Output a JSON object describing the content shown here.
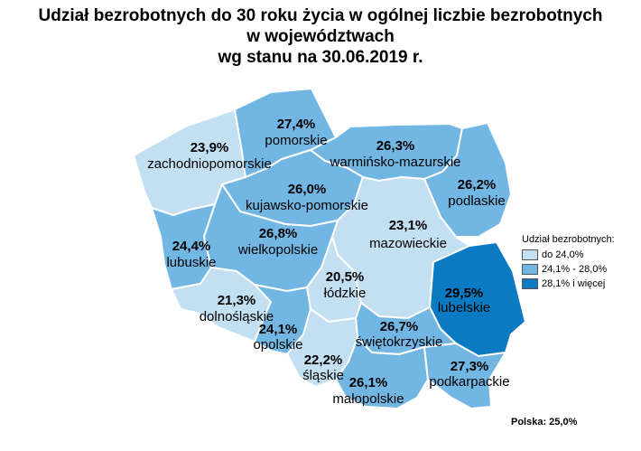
{
  "title": {
    "line1": "Udział bezrobotnych do 30 roku życia w ogólnej liczbie bezrobotnych",
    "line2": "w województwach",
    "line3": "wg stanu na 30.06.2019 r."
  },
  "colors": {
    "light": "#c3dff2",
    "medium": "#72b7e3",
    "dark": "#0a7bc2"
  },
  "regions": [
    {
      "id": "zachodniopomorskie",
      "name": "zachodniopomorskie",
      "value": "23,9%",
      "class": "light"
    },
    {
      "id": "pomorskie",
      "name": "pomorskie",
      "value": "27,4%",
      "class": "medium"
    },
    {
      "id": "warminsko-mazurskie",
      "name": "warmińsko-mazurskie",
      "value": "26,3%",
      "class": "medium"
    },
    {
      "id": "podlaskie",
      "name": "podlaskie",
      "value": "26,2%",
      "class": "medium"
    },
    {
      "id": "kujawsko-pomorskie",
      "name": "kujawsko-pomorskie",
      "value": "26,0%",
      "class": "medium"
    },
    {
      "id": "lubuskie",
      "name": "lubuskie",
      "value": "24,4%",
      "class": "medium"
    },
    {
      "id": "wielkopolskie",
      "name": "wielkopolskie",
      "value": "26,8%",
      "class": "medium"
    },
    {
      "id": "mazowieckie",
      "name": "mazowieckie",
      "value": "23,1%",
      "class": "light"
    },
    {
      "id": "lodzkie",
      "name": "łódzkie",
      "value": "20,5%",
      "class": "light"
    },
    {
      "id": "lubelskie",
      "name": "lubelskie",
      "value": "29,5%",
      "class": "dark"
    },
    {
      "id": "dolnoslaskie",
      "name": "dolnośląskie",
      "value": "21,3%",
      "class": "light"
    },
    {
      "id": "opolskie",
      "name": "opolskie",
      "value": "24,1%",
      "class": "medium"
    },
    {
      "id": "swietokrzyskie",
      "name": "świętokrzyskie",
      "value": "26,7%",
      "class": "medium"
    },
    {
      "id": "slaskie",
      "name": "śląskie",
      "value": "22,2%",
      "class": "light"
    },
    {
      "id": "malopolskie",
      "name": "małopolskie",
      "value": "26,1%",
      "class": "medium"
    },
    {
      "id": "podkarpackie",
      "name": "podkarpackie",
      "value": "27,3%",
      "class": "medium"
    }
  ],
  "legend": {
    "title": "Udział bezrobotnych:",
    "items": [
      {
        "label": "do 24,0%",
        "class": "light"
      },
      {
        "label": "24,1% - 28,0%",
        "class": "medium"
      },
      {
        "label": "28,1% i więcej",
        "class": "dark"
      }
    ]
  },
  "footnote": "Polska: 25,0%"
}
